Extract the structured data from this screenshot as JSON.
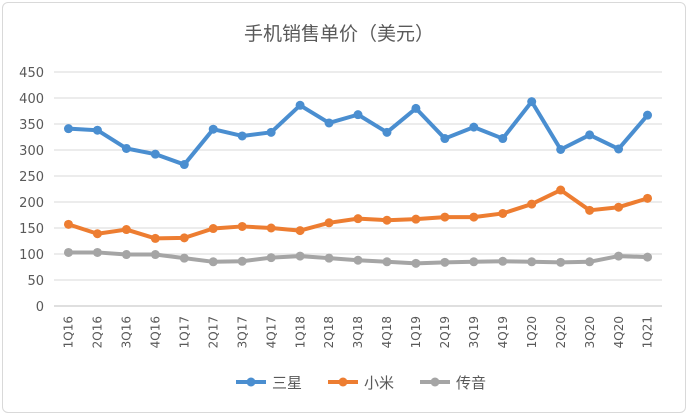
{
  "chart_data": {
    "type": "line",
    "title": "手机销售单价（美元）",
    "xlabel": "",
    "ylabel": "",
    "ylim": [
      0,
      450
    ],
    "yticks": [
      0,
      50,
      100,
      150,
      200,
      250,
      300,
      350,
      400,
      450
    ],
    "grid": true,
    "legend_position": "bottom",
    "categories": [
      "1Q16",
      "2Q16",
      "3Q16",
      "4Q16",
      "1Q17",
      "2Q17",
      "3Q17",
      "4Q17",
      "1Q18",
      "2Q18",
      "3Q18",
      "4Q18",
      "1Q19",
      "2Q19",
      "3Q19",
      "4Q19",
      "1Q20",
      "2Q20",
      "3Q20",
      "4Q20",
      "1Q21"
    ],
    "series": [
      {
        "name": "三星",
        "color": "#4a8ed0",
        "values": [
          341,
          338,
          303,
          292,
          272,
          340,
          327,
          334,
          386,
          352,
          368,
          334,
          380,
          322,
          344,
          322,
          393,
          301,
          329,
          302,
          367
        ]
      },
      {
        "name": "小米",
        "color": "#ed7d31",
        "values": [
          157,
          139,
          147,
          130,
          131,
          149,
          153,
          150,
          145,
          160,
          168,
          165,
          167,
          171,
          171,
          178,
          196,
          223,
          184,
          190,
          207
        ]
      },
      {
        "name": "传音",
        "color": "#a5a5a5",
        "values": [
          103,
          103,
          99,
          99,
          92,
          85,
          86,
          93,
          96,
          92,
          88,
          85,
          82,
          84,
          85,
          86,
          85,
          84,
          85,
          96,
          94
        ]
      }
    ]
  }
}
